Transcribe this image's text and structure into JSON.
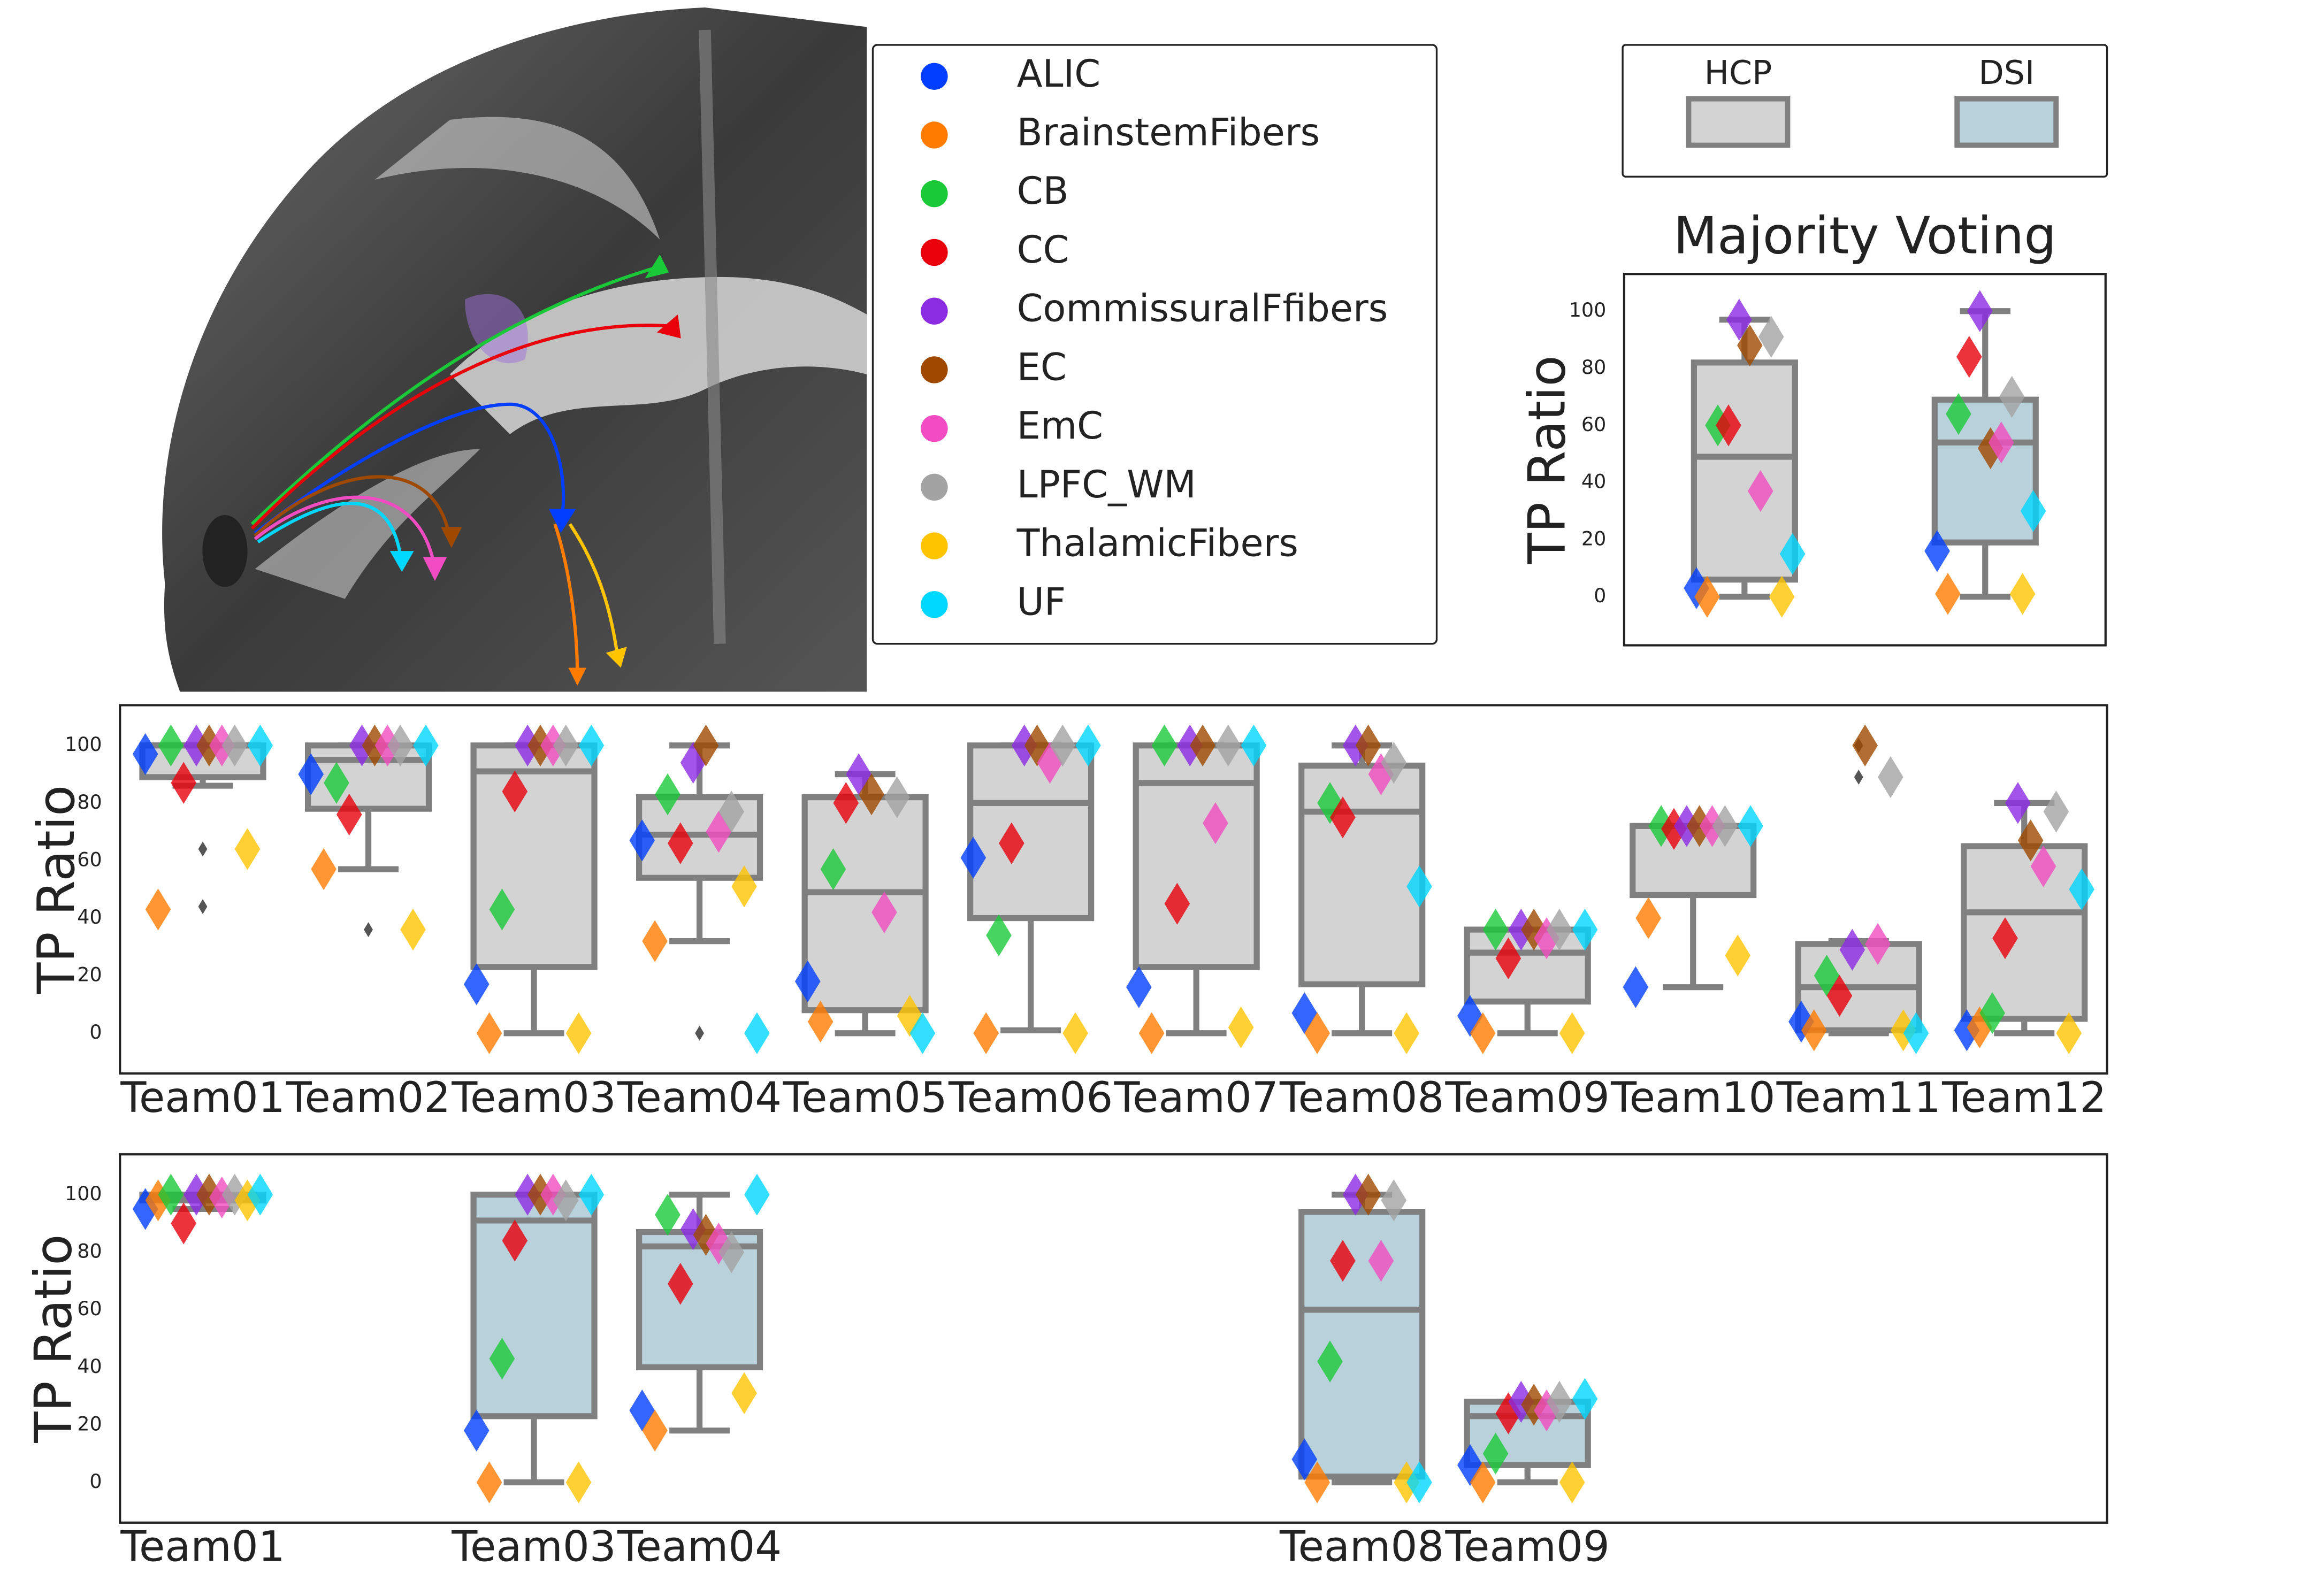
{
  "tract_legend": [
    {
      "name": "ALIC",
      "color": "#023eff"
    },
    {
      "name": "BrainstemFibers",
      "color": "#ff7c00"
    },
    {
      "name": "CB",
      "color": "#1ac938"
    },
    {
      "name": "CC",
      "color": "#e8000b"
    },
    {
      "name": "CommissuralFfibers",
      "color": "#8b2be2"
    },
    {
      "name": "EC",
      "color": "#9f4800"
    },
    {
      "name": "EmC",
      "color": "#f14cc1"
    },
    {
      "name": "LPFC_WM",
      "color": "#a3a3a3"
    },
    {
      "name": "ThalamicFibers",
      "color": "#ffc400"
    },
    {
      "name": "UF",
      "color": "#00d7ff"
    }
  ],
  "box_legend": [
    {
      "name": "HCP",
      "color": "#d3d3d3"
    },
    {
      "name": "DSI",
      "color": "#b8d1db"
    }
  ],
  "chart_data": [
    {
      "type": "box",
      "title": "Majority Voting",
      "ylabel": "TP Ratio",
      "ylim": [
        -17,
        113
      ],
      "yticks": [
        0,
        20,
        40,
        60,
        80,
        100
      ],
      "categories": [
        null,
        null
      ],
      "boxes": [
        {
          "color": "#d3d3d3",
          "q1": 6,
          "median": 49,
          "q3": 82,
          "whislo": 0,
          "whishi": 97,
          "outliers": []
        },
        {
          "color": "#b8d1db",
          "q1": 19,
          "median": 54,
          "q3": 69,
          "whislo": 0,
          "whishi": 100,
          "outliers": []
        }
      ],
      "series": [
        {
          "values": [
            3,
            16
          ]
        },
        {
          "values": [
            0,
            1
          ]
        },
        {
          "values": [
            60,
            64
          ]
        },
        {
          "values": [
            60,
            84
          ]
        },
        {
          "values": [
            97,
            100
          ]
        },
        {
          "values": [
            88,
            52
          ]
        },
        {
          "values": [
            37,
            54
          ]
        },
        {
          "values": [
            91,
            70
          ]
        },
        {
          "values": [
            0,
            1
          ]
        },
        {
          "values": [
            15,
            30
          ]
        }
      ]
    },
    {
      "type": "box",
      "ylabel": "TP Ratio",
      "ylim": [
        -14,
        114
      ],
      "yticks": [
        0,
        20,
        40,
        60,
        80,
        100
      ],
      "categories": [
        "Team01",
        "Team02",
        "Team03",
        "Team04",
        "Team05",
        "Team06",
        "Team07",
        "Team08",
        "Team09",
        "Team10",
        "Team11",
        "Team12"
      ],
      "boxes": [
        {
          "color": "#d3d3d3",
          "q1": 89,
          "median": 100,
          "q3": 100,
          "whislo": 86,
          "whishi": 100,
          "outliers": [
            64,
            44
          ]
        },
        {
          "color": "#d3d3d3",
          "q1": 78,
          "median": 95,
          "q3": 100,
          "whislo": 57,
          "whishi": 100,
          "outliers": [
            36
          ]
        },
        {
          "color": "#d3d3d3",
          "q1": 23,
          "median": 91,
          "q3": 100,
          "whislo": 0,
          "whishi": 100,
          "outliers": []
        },
        {
          "color": "#d3d3d3",
          "q1": 54,
          "median": 69,
          "q3": 82,
          "whislo": 32,
          "whishi": 100,
          "outliers": [
            0
          ]
        },
        {
          "color": "#d3d3d3",
          "q1": 8,
          "median": 49,
          "q3": 82,
          "whislo": 0,
          "whishi": 90,
          "outliers": []
        },
        {
          "color": "#d3d3d3",
          "q1": 40,
          "median": 80,
          "q3": 100,
          "whislo": 1,
          "whishi": 100,
          "outliers": []
        },
        {
          "color": "#d3d3d3",
          "q1": 23,
          "median": 87,
          "q3": 100,
          "whislo": 0,
          "whishi": 100,
          "outliers": []
        },
        {
          "color": "#d3d3d3",
          "q1": 17,
          "median": 77,
          "q3": 93,
          "whislo": 0,
          "whishi": 100,
          "outliers": []
        },
        {
          "color": "#d3d3d3",
          "q1": 11,
          "median": 28,
          "q3": 36,
          "whislo": 0,
          "whishi": 36,
          "outliers": []
        },
        {
          "color": "#d3d3d3",
          "q1": 48,
          "median": 72,
          "q3": 72,
          "whislo": 16,
          "whishi": 72,
          "outliers": []
        },
        {
          "color": "#d3d3d3",
          "q1": 1,
          "median": 16,
          "q3": 31,
          "whislo": 0,
          "whishi": 32,
          "outliers": [
            100,
            89
          ]
        },
        {
          "color": "#d3d3d3",
          "q1": 5,
          "median": 42,
          "q3": 65,
          "whislo": 0,
          "whishi": 80,
          "outliers": []
        }
      ],
      "series": [
        {
          "values": [
            97,
            90,
            17,
            67,
            18,
            61,
            16,
            7,
            6,
            16,
            4,
            1
          ]
        },
        {
          "values": [
            43,
            57,
            0,
            32,
            4,
            0,
            0,
            0,
            0,
            40,
            1,
            2
          ]
        },
        {
          "values": [
            100,
            87,
            43,
            83,
            57,
            34,
            100,
            80,
            36,
            72,
            20,
            7
          ]
        },
        {
          "values": [
            87,
            76,
            84,
            66,
            80,
            66,
            45,
            75,
            26,
            71,
            13,
            33
          ]
        },
        {
          "values": [
            100,
            100,
            100,
            94,
            90,
            100,
            100,
            100,
            36,
            72,
            29,
            80
          ]
        },
        {
          "values": [
            100,
            100,
            100,
            100,
            83,
            100,
            100,
            100,
            36,
            72,
            100,
            67
          ]
        },
        {
          "values": [
            100,
            100,
            100,
            70,
            42,
            94,
            73,
            90,
            33,
            72,
            31,
            58
          ]
        },
        {
          "values": [
            100,
            100,
            100,
            77,
            82,
            100,
            100,
            94,
            36,
            72,
            89,
            77
          ]
        },
        {
          "values": [
            64,
            36,
            0,
            51,
            6,
            0,
            2,
            0,
            0,
            27,
            1,
            0
          ]
        },
        {
          "values": [
            100,
            100,
            100,
            0,
            0,
            100,
            100,
            51,
            36,
            72,
            0,
            50
          ]
        }
      ]
    },
    {
      "type": "box",
      "ylabel": "TP Ratio",
      "ylim": [
        -14,
        114
      ],
      "yticks": [
        0,
        20,
        40,
        60,
        80,
        100
      ],
      "categories": [
        "Team01",
        null,
        "Team03",
        "Team04",
        null,
        null,
        null,
        "Team08",
        "Team09",
        null,
        null,
        null
      ],
      "boxes": [
        {
          "color": "#b8d1db",
          "q1": 98,
          "median": 100,
          "q3": 100,
          "whislo": 95,
          "whishi": 100,
          "outliers": []
        },
        null,
        {
          "color": "#b8d1db",
          "q1": 23,
          "median": 91,
          "q3": 100,
          "whislo": 0,
          "whishi": 100,
          "outliers": []
        },
        {
          "color": "#b8d1db",
          "q1": 40,
          "median": 82,
          "q3": 87,
          "whislo": 18,
          "whishi": 100,
          "outliers": []
        },
        null,
        null,
        null,
        {
          "color": "#b8d1db",
          "q1": 2,
          "median": 60,
          "q3": 94,
          "whislo": 0,
          "whishi": 100,
          "outliers": []
        },
        {
          "color": "#b8d1db",
          "q1": 6,
          "median": 23,
          "q3": 28,
          "whislo": 0,
          "whishi": 28,
          "outliers": []
        },
        null,
        null,
        null
      ],
      "series": [
        {
          "values": [
            95,
            null,
            18,
            25,
            null,
            null,
            null,
            8,
            6,
            null,
            null,
            null
          ]
        },
        {
          "values": [
            98,
            null,
            0,
            18,
            null,
            null,
            null,
            0,
            0,
            null,
            null,
            null
          ]
        },
        {
          "values": [
            100,
            null,
            43,
            93,
            null,
            null,
            null,
            42,
            10,
            null,
            null,
            null
          ]
        },
        {
          "values": [
            90,
            null,
            84,
            69,
            null,
            null,
            null,
            77,
            24,
            null,
            null,
            null
          ]
        },
        {
          "values": [
            100,
            null,
            100,
            88,
            null,
            null,
            null,
            100,
            28,
            null,
            null,
            null
          ]
        },
        {
          "values": [
            100,
            null,
            100,
            86,
            null,
            null,
            null,
            100,
            27,
            null,
            null,
            null
          ]
        },
        {
          "values": [
            99,
            null,
            100,
            83,
            null,
            null,
            null,
            77,
            25,
            null,
            null,
            null
          ]
        },
        {
          "values": [
            100,
            null,
            98,
            80,
            null,
            null,
            null,
            98,
            28,
            null,
            null,
            null
          ]
        },
        {
          "values": [
            98,
            null,
            0,
            31,
            null,
            null,
            null,
            0,
            0,
            null,
            null,
            null
          ]
        },
        {
          "values": [
            100,
            null,
            100,
            100,
            null,
            null,
            null,
            0,
            29,
            null,
            null,
            null
          ]
        }
      ]
    }
  ]
}
